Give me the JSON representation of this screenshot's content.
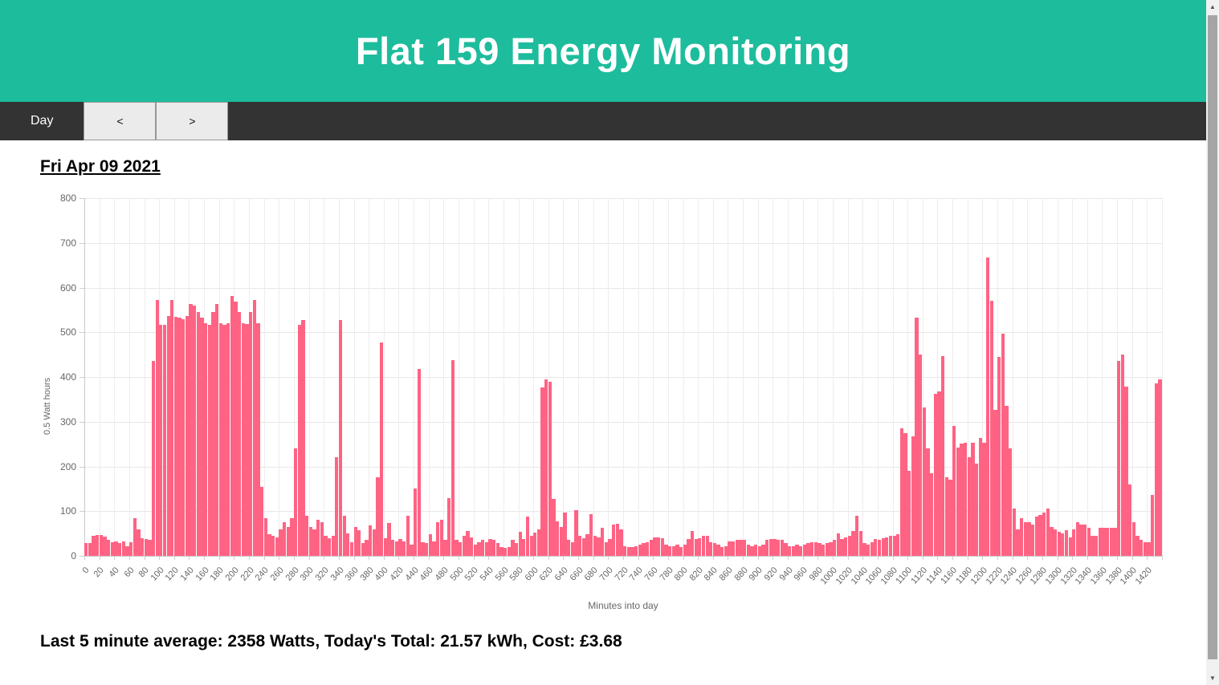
{
  "header": {
    "title": "Flat 159 Energy Monitoring",
    "bg_color": "#1dbc9c"
  },
  "toolbar": {
    "day_label": "Day",
    "prev_label": "<",
    "next_label": ">"
  },
  "content": {
    "date_heading": "Fri Apr 09 2021",
    "summary": "Last 5 minute average: 2358 Watts, Today's Total: 21.57 kWh, Cost: £3.68"
  },
  "scrollbar": {
    "up_icon": "▲",
    "down_icon": "▼"
  },
  "chart_data": {
    "type": "bar",
    "title": "",
    "xlabel": "Minutes into day",
    "ylabel": "0.5 Watt hours",
    "ylim": [
      0,
      800
    ],
    "y_ticks": [
      0,
      100,
      200,
      300,
      400,
      500,
      600,
      700,
      800
    ],
    "x_ticks": {
      "start": 0,
      "end": 1420,
      "step": 20
    },
    "x_range_minutes": [
      0,
      1440
    ],
    "x_start": 0,
    "x_step_minutes": 5,
    "bar_color": "#ff6384",
    "grid": true,
    "legend_position": "none",
    "values": [
      28,
      28,
      45,
      46,
      46,
      43,
      35,
      30,
      33,
      28,
      33,
      22,
      30,
      84,
      60,
      40,
      38,
      35,
      435,
      573,
      517,
      517,
      536,
      573,
      534,
      532,
      530,
      536,
      563,
      560,
      545,
      532,
      520,
      517,
      546,
      563,
      521,
      517,
      520,
      582,
      568,
      545,
      521,
      518,
      546,
      572,
      520,
      155,
      85,
      48,
      45,
      42,
      60,
      75,
      65,
      85,
      240,
      517,
      528,
      90,
      65,
      60,
      80,
      75,
      45,
      40,
      45,
      220,
      527,
      90,
      51,
      30,
      65,
      58,
      28,
      35,
      68,
      60,
      176,
      478,
      40,
      74,
      35,
      33,
      38,
      33,
      90,
      25,
      150,
      418,
      30,
      28,
      48,
      33,
      76,
      80,
      35,
      130,
      437,
      35,
      30,
      45,
      55,
      42,
      25,
      30,
      35,
      30,
      38,
      35,
      28,
      20,
      18,
      20,
      35,
      28,
      53,
      38,
      88,
      45,
      52,
      59,
      377,
      394,
      390,
      128,
      77,
      65,
      96,
      35,
      30,
      102,
      45,
      40,
      48,
      94,
      45,
      42,
      62,
      30,
      38,
      70,
      72,
      60,
      22,
      20,
      20,
      22,
      25,
      28,
      30,
      35,
      42,
      42,
      40,
      25,
      22,
      22,
      25,
      20,
      25,
      38,
      55,
      38,
      40,
      45,
      45,
      30,
      28,
      25,
      20,
      22,
      32,
      32,
      35,
      35,
      35,
      25,
      22,
      25,
      22,
      25,
      35,
      38,
      38,
      36,
      35,
      28,
      22,
      22,
      25,
      22,
      25,
      28,
      30,
      30,
      28,
      25,
      28,
      30,
      35,
      50,
      38,
      42,
      45,
      55,
      90,
      55,
      28,
      25,
      30,
      38,
      36,
      40,
      42,
      45,
      45,
      48,
      285,
      275,
      190,
      267,
      532,
      450,
      331,
      240,
      185,
      362,
      368,
      447,
      176,
      170,
      291,
      243,
      252,
      253,
      221,
      253,
      206,
      263,
      253,
      667,
      570,
      327,
      444,
      497,
      336,
      240,
      105,
      59,
      84,
      75,
      75,
      70,
      88,
      92,
      97,
      105,
      65,
      60,
      54,
      50,
      57,
      41,
      60,
      76,
      70,
      70,
      62,
      45,
      45,
      62,
      62,
      62,
      62,
      62,
      435,
      450,
      378,
      160,
      76,
      45,
      35,
      30,
      30,
      137,
      385,
      395
    ]
  }
}
